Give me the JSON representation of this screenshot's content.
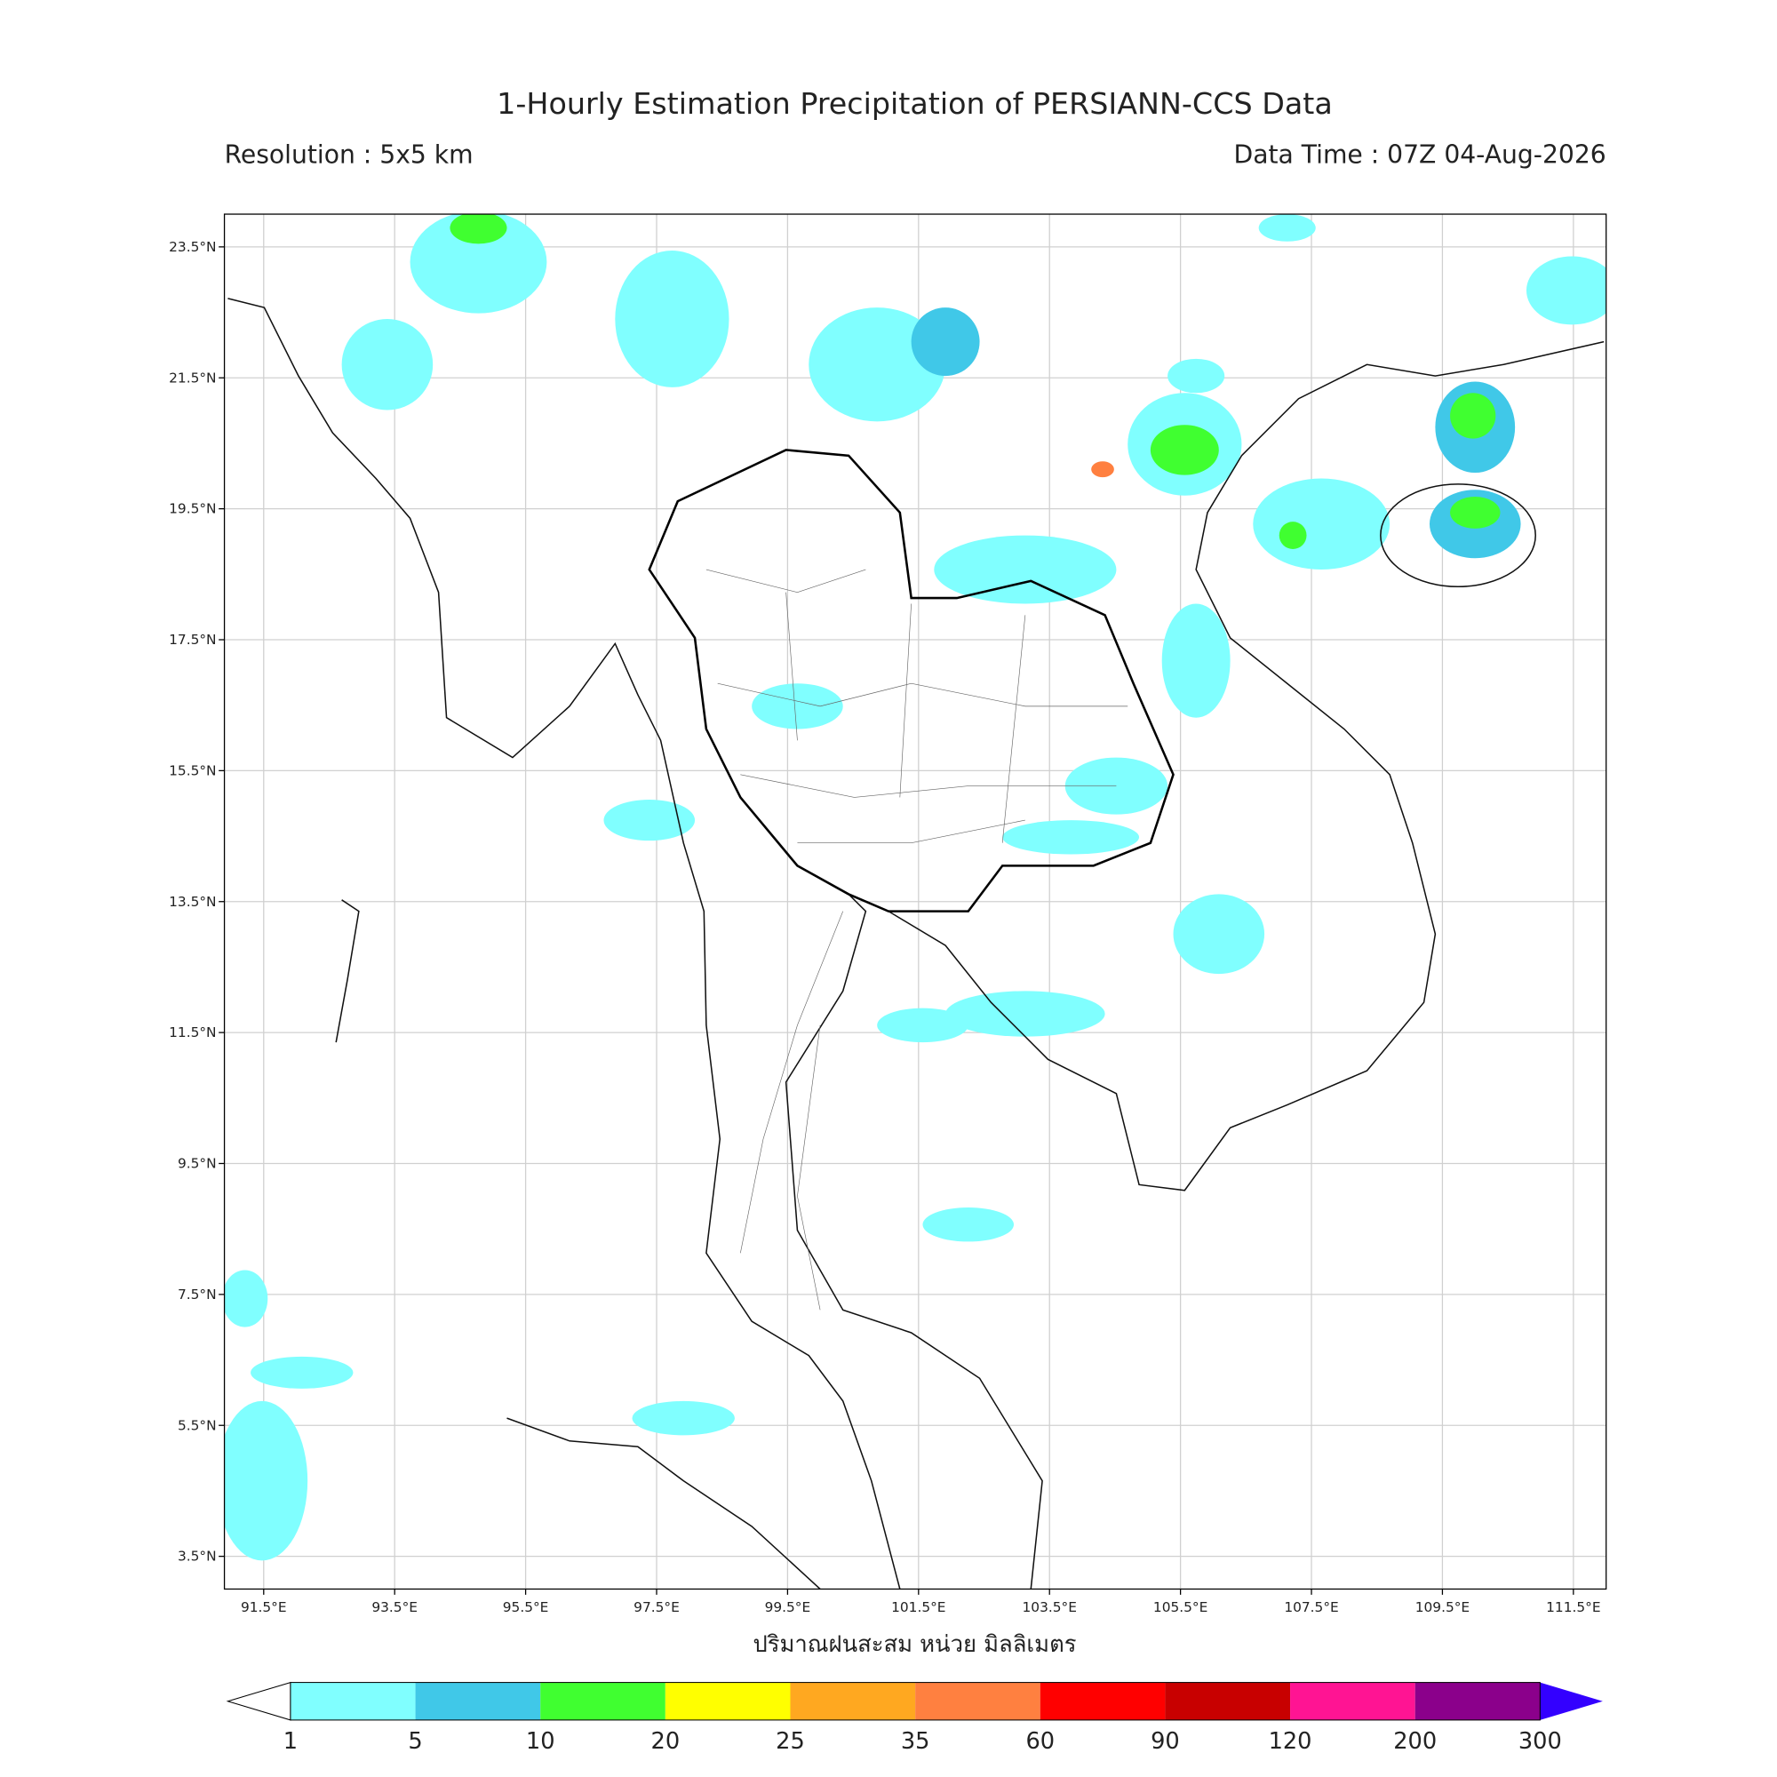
{
  "title": "1-Hourly Estimation Precipitation of PERSIANN-CCS Data",
  "resolution": "Resolution : 5x5 km",
  "data_time": "Data Time : 07Z 04-Aug-2026",
  "map": {
    "lonlim": [
      90.9,
      112.0
    ],
    "latlim": [
      3.0,
      24.0
    ],
    "grid": true,
    "lonticks": [
      {
        "value": 91.5,
        "label": "91.5°E"
      },
      {
        "value": 93.5,
        "label": "93.5°E"
      },
      {
        "value": 95.5,
        "label": "95.5°E"
      },
      {
        "value": 97.5,
        "label": "97.5°E"
      },
      {
        "value": 99.5,
        "label": "99.5°E"
      },
      {
        "value": 101.5,
        "label": "101.5°E"
      },
      {
        "value": 103.5,
        "label": "103.5°E"
      },
      {
        "value": 105.5,
        "label": "105.5°E"
      },
      {
        "value": 107.5,
        "label": "107.5°E"
      },
      {
        "value": 109.5,
        "label": "109.5°E"
      },
      {
        "value": 111.5,
        "label": "111.5°E"
      }
    ],
    "latticks": [
      {
        "value": 3.5,
        "label": "3.5°N"
      },
      {
        "value": 5.5,
        "label": "5.5°N"
      },
      {
        "value": 7.5,
        "label": "7.5°N"
      },
      {
        "value": 9.5,
        "label": "9.5°N"
      },
      {
        "value": 11.5,
        "label": "11.5°N"
      },
      {
        "value": 13.5,
        "label": "13.5°N"
      },
      {
        "value": 15.5,
        "label": "15.5°N"
      },
      {
        "value": 17.5,
        "label": "17.5°N"
      },
      {
        "value": 19.5,
        "label": "19.5°N"
      },
      {
        "value": 21.5,
        "label": "21.5°N"
      },
      {
        "value": 23.5,
        "label": "23.5°N"
      }
    ],
    "xlabel": "ปริมาณฝนสะสม หน่วย มิลลิเมตร",
    "colorbar": {
      "levels": [
        1,
        5,
        10,
        20,
        25,
        35,
        60,
        90,
        120,
        200,
        300
      ],
      "colors": [
        "#80ffff",
        "#40c8e8",
        "#40ff30",
        "#ffff00",
        "#ffa820",
        "#ff8040",
        "#ff0000",
        "#c80000",
        "#ff1493",
        "#8b008b"
      ],
      "under_color": "#ffffff",
      "over_color": "#3300ff"
    }
  }
}
